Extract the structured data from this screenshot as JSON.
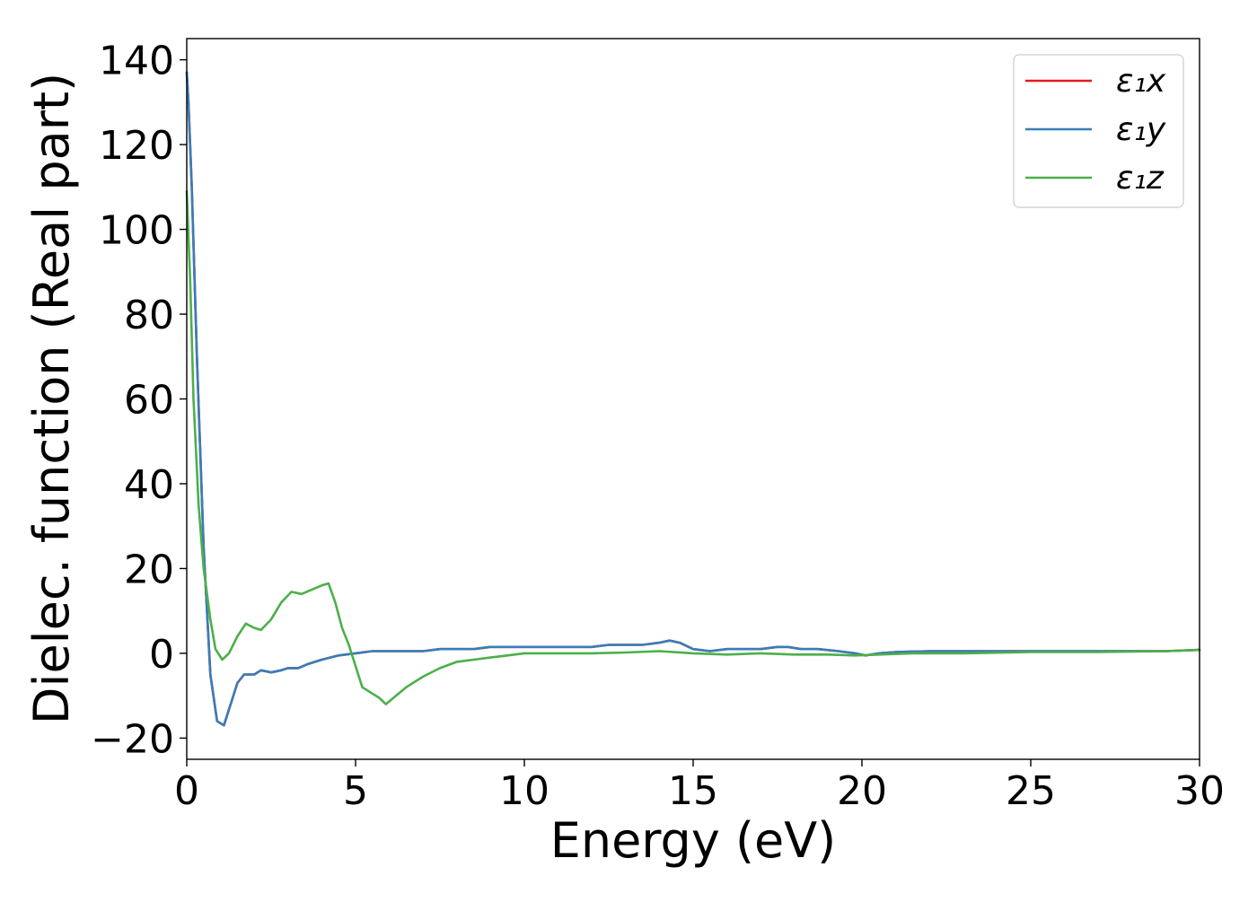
{
  "chart_data": {
    "type": "line",
    "title": "",
    "xlabel": "Energy (eV)",
    "ylabel": "Dielec. function (Real part)",
    "xlim": [
      0,
      30
    ],
    "ylim": [
      -25,
      145
    ],
    "xticks": [
      0,
      5,
      10,
      15,
      20,
      25,
      30
    ],
    "xtick_labels": [
      "0",
      "5",
      "10",
      "15",
      "20",
      "25",
      "30"
    ],
    "yticks": [
      -20,
      0,
      20,
      40,
      60,
      80,
      100,
      120,
      140
    ],
    "ytick_labels": [
      "−20",
      "0",
      "20",
      "40",
      "60",
      "80",
      "100",
      "120",
      "140"
    ],
    "grid": false,
    "legend_position": "top-right",
    "series": [
      {
        "name": "ε₁x",
        "color": "#e41a1c",
        "x": [
          0,
          0.05,
          0.15,
          0.3,
          0.5,
          0.7,
          0.9,
          1.1,
          1.3,
          1.5,
          1.7,
          2.0,
          2.2,
          2.5,
          2.8,
          3.0,
          3.3,
          3.6,
          4.0,
          4.5,
          5.0,
          5.5,
          6.0,
          6.5,
          7.0,
          7.5,
          8.0,
          8.5,
          9.0,
          9.5,
          10.0,
          10.5,
          11.0,
          11.5,
          12.0,
          12.5,
          13.0,
          13.5,
          14.0,
          14.3,
          14.6,
          15.0,
          15.5,
          16.0,
          16.5,
          17.0,
          17.5,
          17.8,
          18.2,
          18.7,
          19.3,
          19.8,
          20.1,
          20.5,
          21.0,
          22.0,
          23.0,
          24.0,
          25.0,
          26.0,
          27.0,
          28.0,
          29.0,
          30.0
        ],
        "values": [
          137,
          130,
          110,
          70,
          25,
          -5,
          -16,
          -17,
          -12,
          -7,
          -5,
          -5,
          -4,
          -4.5,
          -4,
          -3.5,
          -3.5,
          -2.5,
          -1.5,
          -0.5,
          0,
          0.5,
          0.5,
          0.5,
          0.5,
          1,
          1,
          1,
          1.5,
          1.5,
          1.5,
          1.5,
          1.5,
          1.5,
          1.5,
          2,
          2,
          2,
          2.5,
          3,
          2.5,
          1,
          0.5,
          1,
          1,
          1,
          1.5,
          1.5,
          1,
          1,
          0.5,
          0,
          -0.5,
          0,
          0.3,
          0.5,
          0.5,
          0.5,
          0.5,
          0.5,
          0.5,
          0.5,
          0.5,
          0.8
        ]
      },
      {
        "name": "ε₁y",
        "color": "#377eb8",
        "x": [
          0,
          0.05,
          0.15,
          0.3,
          0.5,
          0.7,
          0.9,
          1.1,
          1.3,
          1.5,
          1.7,
          2.0,
          2.2,
          2.5,
          2.8,
          3.0,
          3.3,
          3.6,
          4.0,
          4.5,
          5.0,
          5.5,
          6.0,
          6.5,
          7.0,
          7.5,
          8.0,
          8.5,
          9.0,
          9.5,
          10.0,
          10.5,
          11.0,
          11.5,
          12.0,
          12.5,
          13.0,
          13.5,
          14.0,
          14.3,
          14.6,
          15.0,
          15.5,
          16.0,
          16.5,
          17.0,
          17.5,
          17.8,
          18.2,
          18.7,
          19.3,
          19.8,
          20.1,
          20.5,
          21.0,
          22.0,
          23.0,
          24.0,
          25.0,
          26.0,
          27.0,
          28.0,
          29.0,
          30.0
        ],
        "values": [
          137,
          130,
          110,
          70,
          25,
          -5,
          -16,
          -17,
          -12,
          -7,
          -5,
          -5,
          -4,
          -4.5,
          -4,
          -3.5,
          -3.5,
          -2.5,
          -1.5,
          -0.5,
          0,
          0.5,
          0.5,
          0.5,
          0.5,
          1,
          1,
          1,
          1.5,
          1.5,
          1.5,
          1.5,
          1.5,
          1.5,
          1.5,
          2,
          2,
          2,
          2.5,
          3,
          2.5,
          1,
          0.5,
          1,
          1,
          1,
          1.5,
          1.5,
          1,
          1,
          0.5,
          0,
          -0.5,
          0,
          0.3,
          0.5,
          0.5,
          0.5,
          0.5,
          0.5,
          0.5,
          0.5,
          0.5,
          0.8
        ]
      },
      {
        "name": "ε₁z",
        "color": "#4daf4a",
        "x": [
          0,
          0.1,
          0.2,
          0.35,
          0.5,
          0.7,
          0.85,
          1.05,
          1.25,
          1.5,
          1.75,
          2.0,
          2.2,
          2.5,
          2.8,
          3.1,
          3.4,
          3.7,
          4.0,
          4.2,
          4.4,
          4.6,
          4.8,
          5.0,
          5.2,
          5.5,
          5.7,
          5.9,
          6.2,
          6.5,
          7.0,
          7.5,
          8.0,
          8.5,
          9.0,
          9.5,
          10.0,
          11.0,
          12.0,
          13.0,
          14.0,
          15.0,
          16.0,
          17.0,
          18.0,
          19.0,
          19.8,
          20.5,
          21.5,
          23.0,
          25.0,
          27.0,
          29.0,
          30.0
        ],
        "values": [
          109,
          88,
          60,
          35,
          20,
          8,
          1,
          -1.5,
          0,
          4,
          7,
          6,
          5.5,
          8,
          12,
          14.5,
          14,
          15,
          16,
          16.5,
          12,
          6,
          2,
          -3,
          -8,
          -9.5,
          -10.5,
          -12,
          -10,
          -8,
          -5.5,
          -3.5,
          -2,
          -1.5,
          -1,
          -0.5,
          0,
          0,
          0,
          0.2,
          0.5,
          0,
          -0.3,
          0,
          -0.3,
          -0.3,
          -0.5,
          -0.3,
          0,
          0,
          0.3,
          0.3,
          0.5,
          0.8
        ]
      }
    ]
  }
}
